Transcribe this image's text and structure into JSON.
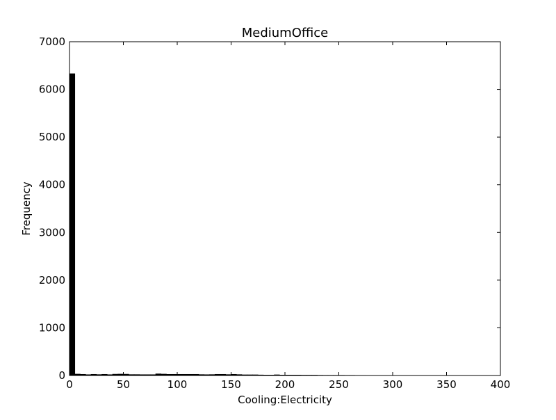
{
  "chart_data": {
    "type": "bar",
    "title": "MediumOffice",
    "xlabel": "Cooling:Electricity",
    "ylabel": "Frequency",
    "xlim": [
      0,
      400
    ],
    "ylim": [
      0,
      7000
    ],
    "x_ticks": [
      0,
      50,
      100,
      150,
      200,
      250,
      300,
      350,
      400
    ],
    "y_ticks": [
      0,
      1000,
      2000,
      3000,
      4000,
      5000,
      6000,
      7000
    ],
    "bin_width": 5,
    "bin_starts": [
      0,
      5,
      10,
      15,
      20,
      25,
      30,
      35,
      40,
      45,
      50,
      55,
      60,
      65,
      70,
      75,
      80,
      85,
      90,
      95,
      100,
      105,
      110,
      115,
      120,
      125,
      130,
      135,
      140,
      145,
      150,
      155,
      160,
      165,
      170,
      175,
      180,
      185,
      190,
      195,
      200,
      205,
      210,
      215,
      220,
      225,
      230,
      235,
      240,
      245,
      250,
      255,
      260,
      265,
      270,
      275,
      280,
      285,
      290,
      295
    ],
    "values": [
      6330,
      30,
      25,
      18,
      25,
      20,
      25,
      18,
      28,
      30,
      28,
      20,
      20,
      18,
      18,
      18,
      35,
      30,
      25,
      25,
      25,
      25,
      25,
      25,
      20,
      18,
      20,
      25,
      25,
      20,
      25,
      20,
      15,
      15,
      15,
      12,
      10,
      10,
      15,
      10,
      10,
      10,
      10,
      8,
      8,
      8,
      6,
      5,
      5,
      5,
      5,
      4,
      4,
      3,
      3,
      2,
      1,
      1,
      2,
      1
    ],
    "bar_color": "#000000",
    "grid": false
  }
}
